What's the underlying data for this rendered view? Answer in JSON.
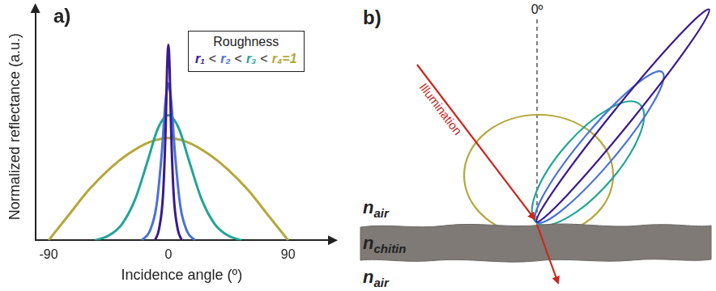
{
  "chart_data": {
    "type": "line",
    "panel_label": "a)",
    "x_label": "Incidence angle (º)",
    "y_label": "Normalized reflectance (a.u.)",
    "xlim": [
      -100,
      120
    ],
    "xticks": [
      -90,
      0,
      90
    ],
    "ylim": [
      0,
      1
    ],
    "yticks": [],
    "tick_labels": "x",
    "grid": false,
    "legend": "upper right",
    "legend_title": "Roughness",
    "legend_separator": "<",
    "series": [
      {
        "name": "r₁",
        "color": "#3a1a8c",
        "x": [
          -10,
          -7,
          -4,
          -2,
          -1,
          0,
          1,
          2,
          4,
          7,
          10
        ],
        "values": [
          0,
          0.05,
          0.2,
          0.5,
          0.75,
          0.86,
          0.75,
          0.5,
          0.2,
          0.05,
          0
        ]
      },
      {
        "name": "r₂",
        "color": "#4a72d6",
        "x": [
          -20,
          -14,
          -9,
          -5,
          -2,
          0,
          2,
          5,
          9,
          14,
          20
        ],
        "values": [
          0,
          0.04,
          0.15,
          0.38,
          0.62,
          0.69,
          0.62,
          0.38,
          0.15,
          0.04,
          0
        ]
      },
      {
        "name": "r₃",
        "color": "#21a596",
        "x": [
          -55,
          -45,
          -35,
          -25,
          -15,
          -8,
          0,
          8,
          15,
          25,
          35,
          45,
          55
        ],
        "values": [
          0,
          0.02,
          0.07,
          0.18,
          0.36,
          0.49,
          0.55,
          0.49,
          0.36,
          0.18,
          0.07,
          0.02,
          0
        ]
      },
      {
        "name": "r₄=1",
        "color": "#b4a83a",
        "x": [
          -90,
          -75,
          -60,
          -45,
          -30,
          -15,
          0,
          15,
          30,
          45,
          60,
          75,
          90
        ],
        "values": [
          0,
          0.11,
          0.22,
          0.31,
          0.38,
          0.43,
          0.45,
          0.43,
          0.38,
          0.31,
          0.22,
          0.11,
          0
        ]
      }
    ]
  },
  "diagram": {
    "panel_label": "b)",
    "normal_label": "0º",
    "illumination_label": "Illumination",
    "layers": [
      {
        "symbol": "n",
        "subscript": "air"
      },
      {
        "symbol": "n",
        "subscript": "chitin"
      },
      {
        "symbol": "n",
        "subscript": "air"
      }
    ]
  }
}
